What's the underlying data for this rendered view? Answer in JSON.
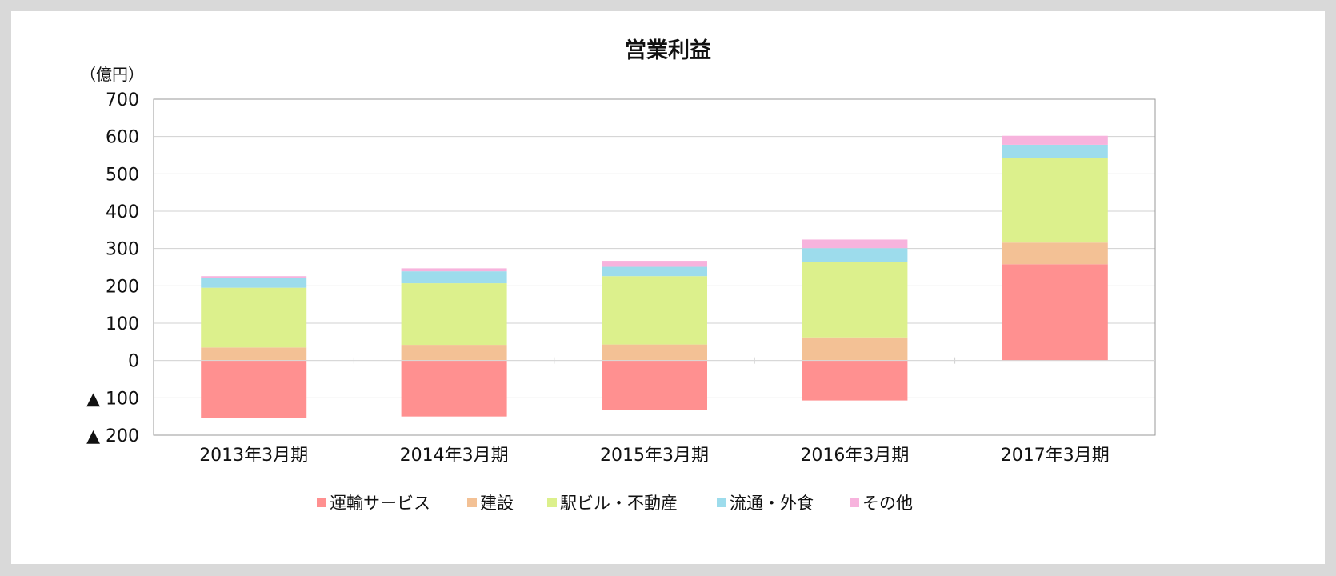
{
  "chart_data": {
    "type": "bar",
    "stacked": true,
    "title": "営業利益",
    "unit_label": "（億円）",
    "categories": [
      "2013年3月期",
      "2014年3月期",
      "2015年3月期",
      "2016年3月期",
      "2017年3月期"
    ],
    "ylim": [
      -200,
      700
    ],
    "yticks": [
      {
        "value": 700,
        "label": "700"
      },
      {
        "value": 600,
        "label": "600"
      },
      {
        "value": 500,
        "label": "500"
      },
      {
        "value": 400,
        "label": "400"
      },
      {
        "value": 300,
        "label": "300"
      },
      {
        "value": 200,
        "label": "200"
      },
      {
        "value": 100,
        "label": "100"
      },
      {
        "value": 0,
        "label": "0"
      },
      {
        "value": -100,
        "label": "▲ 100"
      },
      {
        "value": -200,
        "label": "▲ 200"
      }
    ],
    "grid": true,
    "legend_position": "bottom",
    "series": [
      {
        "name": "運輸サービス",
        "color": "#ff9090",
        "values": [
          -155,
          -150,
          -133,
          -107,
          258
        ]
      },
      {
        "name": "建設",
        "color": "#f3c195",
        "values": [
          35,
          42,
          43,
          62,
          58
        ]
      },
      {
        "name": "駅ビル・不動産",
        "color": "#dcf08c",
        "values": [
          160,
          165,
          183,
          203,
          227
        ]
      },
      {
        "name": "流通・外食",
        "color": "#9ddcec",
        "values": [
          26,
          32,
          25,
          36,
          35
        ]
      },
      {
        "name": "その他",
        "color": "#f7b3dd",
        "values": [
          5,
          8,
          16,
          23,
          24
        ]
      }
    ]
  }
}
